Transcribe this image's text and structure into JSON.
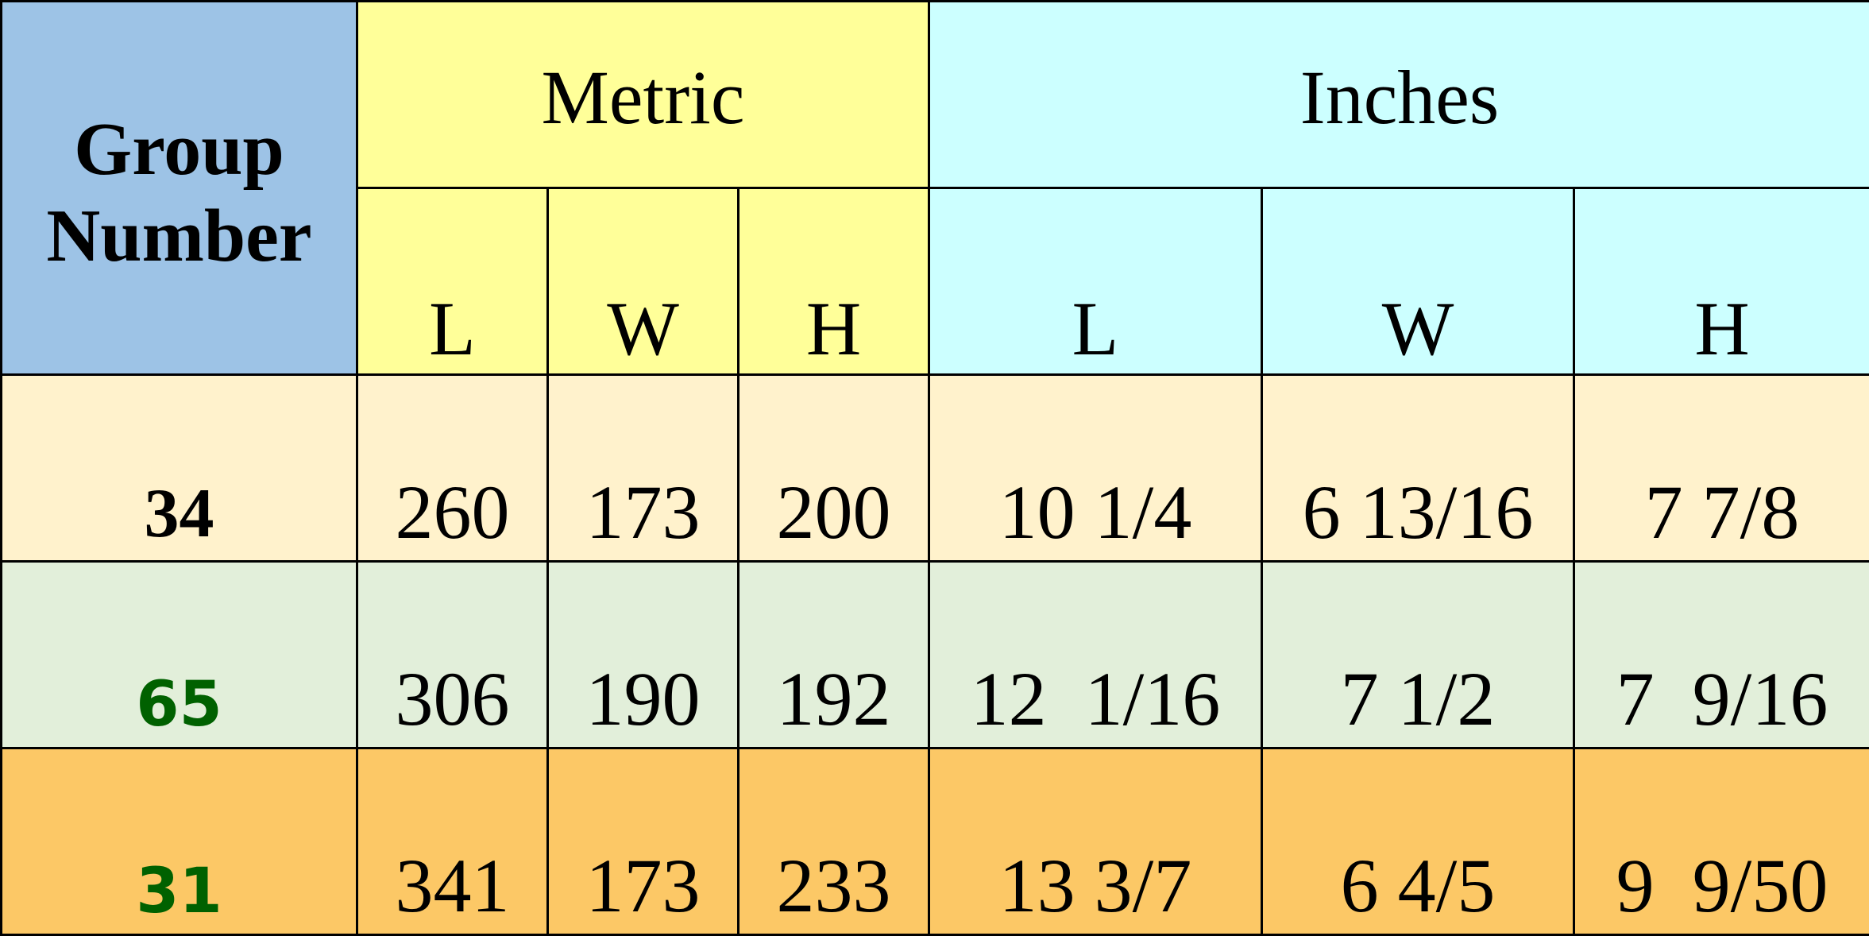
{
  "header": {
    "group_number": "Group Number",
    "metric": "Metric",
    "inches": "Inches",
    "metric_subheaders": [
      "L",
      "W",
      "H"
    ],
    "inches_subheaders": [
      "L",
      "W",
      "H"
    ]
  },
  "rows": [
    {
      "group": "34",
      "group_color": "#000000",
      "row_color": "#fff2cc",
      "metric": [
        "260",
        "173",
        "200"
      ],
      "inches": [
        "10 1/4",
        "6 13/16",
        "7 7/8"
      ]
    },
    {
      "group": "65",
      "group_color": "#006100",
      "row_color": "#e2efda",
      "metric": [
        "306",
        "190",
        "192"
      ],
      "inches": [
        "12  1/16",
        "7 1/2",
        "7  9/16"
      ]
    },
    {
      "group": "31",
      "group_color": "#006100",
      "row_color": "#fcc866",
      "metric": [
        "341",
        "173",
        "233"
      ],
      "inches": [
        "13 3/7",
        "6 4/5",
        "9  9/50"
      ]
    }
  ]
}
